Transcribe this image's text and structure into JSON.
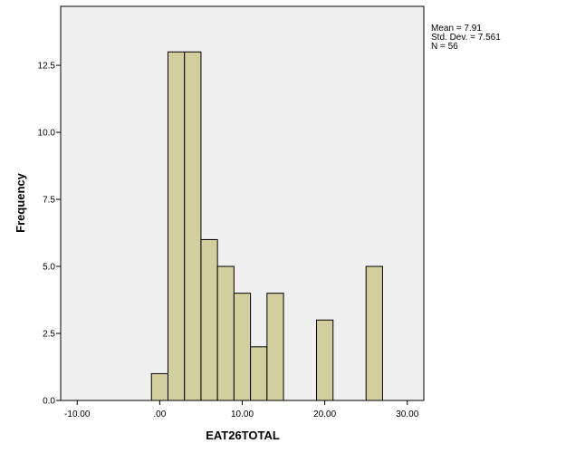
{
  "chart_data": {
    "type": "bar",
    "subtype": "histogram",
    "xlabel": "EAT26TOTAL",
    "ylabel": "Frequency",
    "xlim": [
      -12,
      32
    ],
    "ylim": [
      0,
      14.7
    ],
    "xticks": [
      -10,
      0,
      10,
      20,
      30
    ],
    "xtick_labels": [
      "-10.00",
      ".00",
      "10.00",
      "20.00",
      "30.00"
    ],
    "yticks": [
      0,
      2.5,
      5,
      7.5,
      10,
      12.5
    ],
    "ytick_labels": [
      "0.0",
      "2.5",
      "5.0",
      "7.5",
      "10.0",
      "12.5"
    ],
    "bin_width": 2,
    "bins": [
      {
        "x0": -1,
        "x1": 1,
        "count": 1
      },
      {
        "x0": 1,
        "x1": 3,
        "count": 13
      },
      {
        "x0": 3,
        "x1": 5,
        "count": 13
      },
      {
        "x0": 5,
        "x1": 7,
        "count": 6
      },
      {
        "x0": 7,
        "x1": 9,
        "count": 5
      },
      {
        "x0": 9,
        "x1": 11,
        "count": 4
      },
      {
        "x0": 11,
        "x1": 13,
        "count": 2
      },
      {
        "x0": 13,
        "x1": 15,
        "count": 4
      },
      {
        "x0": 19,
        "x1": 21,
        "count": 3
      },
      {
        "x0": 25,
        "x1": 27,
        "count": 5
      }
    ],
    "bar_color": "#d3ce9e",
    "bar_edge_color": "#000000",
    "plot_background": "#f0f0f0",
    "grid": false,
    "stats": {
      "mean": "Mean = 7.91",
      "std": "Std. Dev. = 7.561",
      "n": "N = 56"
    }
  }
}
